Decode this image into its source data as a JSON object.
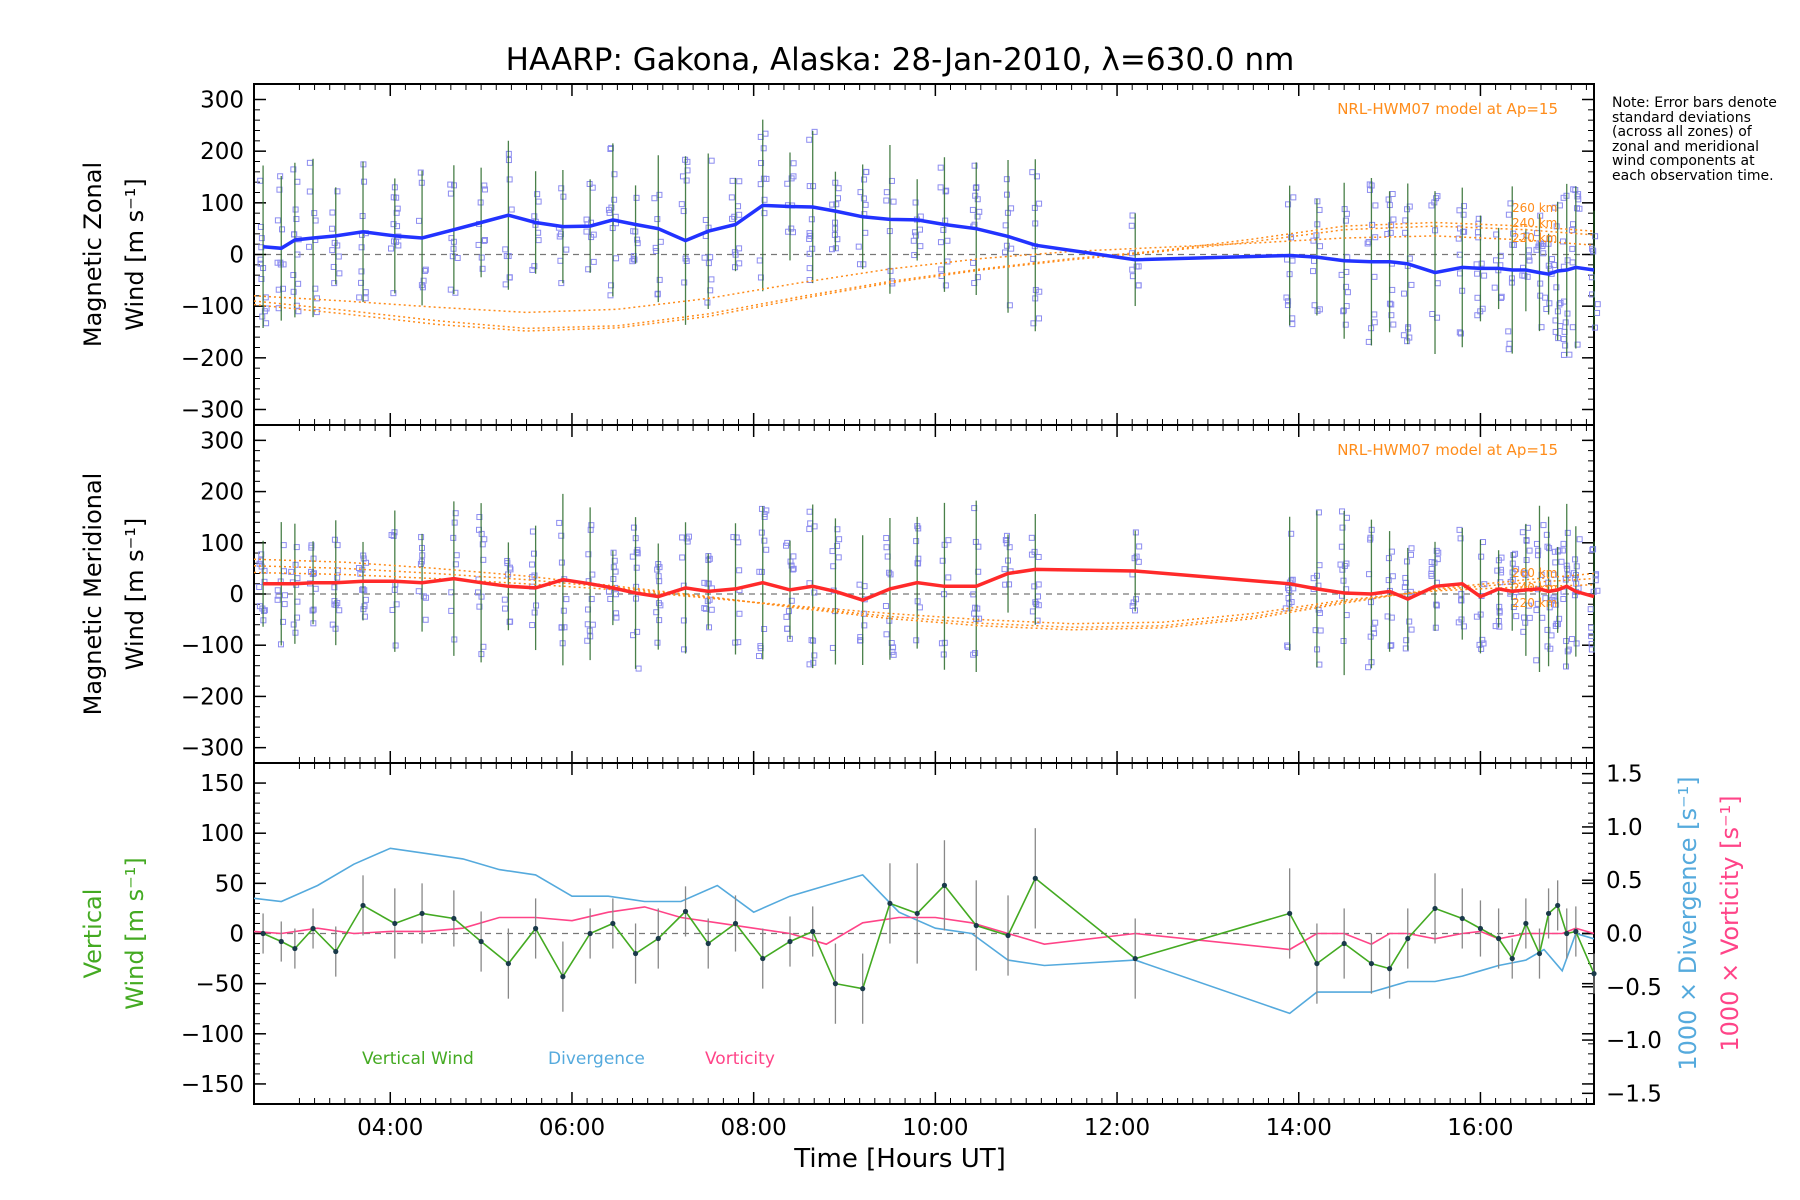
{
  "title": "HAARP: Gakona,  Alaska: 28-Jan-2010, λ=630.0 nm",
  "note": "Note: Error bars denote standard deviations (across all zones) of zonal and meridional wind components at each observation time.",
  "xlabel": "Time [Hours UT]",
  "x_tick_labels": [
    "04:00",
    "06:00",
    "08:00",
    "10:00",
    "12:00",
    "14:00",
    "16:00"
  ],
  "colors": {
    "zonal": "#2233ff",
    "meridional": "#ff2a2a",
    "model": "#ff8c1a",
    "scatter": "#8c8cf0",
    "vertical": "#44aa22",
    "divergence": "#55aadd",
    "vorticity": "#ff4488",
    "errorbar": "#888888"
  },
  "chart_data": [
    {
      "type": "line",
      "panel": "zonal",
      "ylabel_line1": "Magnetic Zonal",
      "ylabel_line2": "Wind [m s⁻¹]",
      "ylim": [
        -330,
        330
      ],
      "y_ticks": [
        300,
        200,
        100,
        0,
        -100,
        -200,
        -300
      ],
      "xlim": [
        2.5,
        17.25
      ],
      "model_label": "NRL-HWM07 model at Ap=15",
      "model_altitude_labels": [
        "260 km",
        "240 km",
        "220 km"
      ],
      "x": [
        2.6,
        2.8,
        2.95,
        3.15,
        3.4,
        3.7,
        4.05,
        4.35,
        4.7,
        5.0,
        5.3,
        5.6,
        5.9,
        6.2,
        6.45,
        6.7,
        6.95,
        7.25,
        7.5,
        7.8,
        8.1,
        8.4,
        8.65,
        8.9,
        9.2,
        9.5,
        9.8,
        10.1,
        10.45,
        10.8,
        11.1,
        12.2,
        13.9,
        14.2,
        14.5,
        14.8,
        15.0,
        15.2,
        15.5,
        15.8,
        16.0,
        16.2,
        16.35,
        16.5,
        16.65,
        16.75,
        16.85,
        16.95,
        17.05,
        17.25
      ],
      "series": [
        {
          "values": [
            15,
            12,
            28,
            32,
            36,
            44,
            36,
            32,
            48,
            62,
            76,
            62,
            54,
            55,
            67,
            58,
            50,
            27,
            45,
            58,
            95,
            93,
            92,
            84,
            73,
            68,
            67,
            58,
            50,
            35,
            18,
            -10,
            -2,
            -5,
            -12,
            -14,
            -14,
            -18,
            -35,
            -25,
            -27,
            -27,
            -30,
            -30,
            -35,
            -38,
            -32,
            -30,
            -25,
            -30
          ]
        }
      ],
      "model_curves": [
        {
          "altitude": "260 km",
          "x": [
            2.5,
            3.5,
            4.5,
            5.5,
            6.5,
            7.5,
            8.5,
            9.5,
            10.5,
            11.5,
            12.5,
            13.5,
            14.5,
            15.5,
            16.5,
            17.25
          ],
          "values": [
            -90,
            -108,
            -128,
            -143,
            -138,
            -115,
            -82,
            -52,
            -28,
            -8,
            8,
            30,
            55,
            62,
            55,
            45
          ]
        },
        {
          "altitude": "240 km",
          "x": [
            2.5,
            3.5,
            4.5,
            5.5,
            6.5,
            7.5,
            8.5,
            9.5,
            10.5,
            11.5,
            12.5,
            13.5,
            14.5,
            15.5,
            16.5,
            17.25
          ],
          "values": [
            -97,
            -115,
            -135,
            -148,
            -142,
            -120,
            -86,
            -55,
            -30,
            -10,
            6,
            25,
            48,
            55,
            48,
            38
          ]
        },
        {
          "altitude": "220 km",
          "x": [
            2.5,
            3.5,
            4.5,
            5.5,
            6.5,
            7.5,
            8.5,
            9.5,
            10.5,
            11.5,
            12.5,
            13.5,
            14.5,
            15.5,
            16.5,
            17.25
          ],
          "values": [
            -80,
            -90,
            -102,
            -112,
            -106,
            -85,
            -55,
            -28,
            -8,
            6,
            14,
            22,
            32,
            36,
            28,
            18
          ]
        }
      ]
    },
    {
      "type": "line",
      "panel": "meridional",
      "ylabel_line1": "Magnetic Meridional",
      "ylabel_line2": "Wind [m s⁻¹]",
      "ylim": [
        -330,
        330
      ],
      "y_ticks": [
        300,
        200,
        100,
        0,
        -100,
        -200,
        -300
      ],
      "xlim": [
        2.5,
        17.25
      ],
      "model_label": "NRL-HWM07 model at Ap=15",
      "model_altitude_labels": [
        "260 km",
        "240 km",
        "220 km"
      ],
      "x": [
        2.6,
        2.8,
        2.95,
        3.15,
        3.4,
        3.7,
        4.05,
        4.35,
        4.7,
        5.0,
        5.3,
        5.6,
        5.9,
        6.2,
        6.45,
        6.7,
        6.95,
        7.25,
        7.5,
        7.8,
        8.1,
        8.4,
        8.65,
        8.9,
        9.2,
        9.5,
        9.8,
        10.1,
        10.45,
        10.8,
        11.1,
        12.2,
        13.9,
        14.2,
        14.5,
        14.8,
        15.0,
        15.2,
        15.5,
        15.8,
        16.0,
        16.2,
        16.35,
        16.5,
        16.65,
        16.75,
        16.85,
        16.95,
        17.05,
        17.25
      ],
      "series": [
        {
          "values": [
            20,
            20,
            20,
            22,
            22,
            25,
            25,
            22,
            30,
            22,
            15,
            12,
            28,
            20,
            12,
            2,
            -5,
            12,
            5,
            10,
            22,
            8,
            15,
            5,
            -12,
            10,
            22,
            15,
            15,
            40,
            48,
            45,
            20,
            10,
            2,
            0,
            5,
            -10,
            15,
            20,
            -5,
            10,
            5,
            8,
            10,
            5,
            8,
            15,
            5,
            -5
          ]
        }
      ],
      "model_curves": [
        {
          "altitude": "260 km",
          "x": [
            2.5,
            3.5,
            4.5,
            5.5,
            6.5,
            7.5,
            8.5,
            9.5,
            10.5,
            11.5,
            12.5,
            13.5,
            14.5,
            15.5,
            16.5,
            17.25
          ],
          "values": [
            68,
            62,
            50,
            35,
            15,
            -5,
            -28,
            -48,
            -62,
            -70,
            -66,
            -48,
            -18,
            10,
            28,
            40
          ]
        },
        {
          "altitude": "240 km",
          "x": [
            2.5,
            3.5,
            4.5,
            5.5,
            6.5,
            7.5,
            8.5,
            9.5,
            10.5,
            11.5,
            12.5,
            13.5,
            14.5,
            15.5,
            16.5,
            17.25
          ],
          "values": [
            55,
            50,
            40,
            28,
            12,
            -6,
            -26,
            -44,
            -57,
            -65,
            -62,
            -44,
            -15,
            8,
            22,
            30
          ]
        },
        {
          "altitude": "220 km",
          "x": [
            2.5,
            3.5,
            4.5,
            5.5,
            6.5,
            7.5,
            8.5,
            9.5,
            10.5,
            11.5,
            12.5,
            13.5,
            14.5,
            15.5,
            16.5,
            17.25
          ],
          "values": [
            42,
            38,
            30,
            20,
            8,
            -8,
            -24,
            -38,
            -50,
            -58,
            -55,
            -38,
            -12,
            6,
            14,
            18
          ]
        }
      ]
    },
    {
      "type": "line",
      "panel": "vertical",
      "ylabel_line1": "Vertical",
      "ylabel_line2": "Wind [m s⁻¹]",
      "ylim": [
        -170,
        170
      ],
      "y_ticks": [
        150,
        100,
        50,
        0,
        -50,
        -100,
        -150
      ],
      "right_axis": {
        "ylim": [
          -1.6,
          1.6
        ],
        "ticks": [
          "1.5",
          "1.0",
          "0.5",
          "0.0",
          "−0.5",
          "−1.0",
          "−1.5"
        ],
        "label_divergence": "1000 × Divergence [s⁻¹]",
        "label_vorticity": "1000 × Vorticity [s⁻¹]"
      },
      "legend": [
        "Vertical Wind",
        "Divergence",
        "Vorticity"
      ],
      "xlim": [
        2.5,
        17.25
      ],
      "series": [
        {
          "name": "Vertical Wind",
          "x": [
            2.6,
            2.8,
            2.95,
            3.15,
            3.4,
            3.7,
            4.05,
            4.35,
            4.7,
            5.0,
            5.3,
            5.6,
            5.9,
            6.2,
            6.45,
            6.7,
            6.95,
            7.25,
            7.5,
            7.8,
            8.1,
            8.4,
            8.65,
            8.9,
            9.2,
            9.5,
            9.8,
            10.1,
            10.45,
            10.8,
            11.1,
            12.2,
            13.9,
            14.2,
            14.5,
            14.8,
            15.0,
            15.2,
            15.5,
            15.8,
            16.0,
            16.2,
            16.35,
            16.5,
            16.65,
            16.75,
            16.85,
            16.95,
            17.05,
            17.25
          ],
          "values": [
            0,
            -8,
            -15,
            5,
            -18,
            28,
            10,
            20,
            15,
            -8,
            -30,
            5,
            -43,
            0,
            10,
            -20,
            -5,
            22,
            -10,
            10,
            -25,
            -8,
            2,
            -50,
            -55,
            30,
            20,
            48,
            8,
            -2,
            55,
            -25,
            20,
            -30,
            -10,
            -30,
            -35,
            -5,
            25,
            15,
            5,
            -5,
            -25,
            10,
            -20,
            20,
            28,
            0,
            2,
            -40
          ],
          "errors": [
            20,
            20,
            20,
            20,
            25,
            30,
            35,
            30,
            28,
            30,
            35,
            30,
            35,
            25,
            25,
            30,
            30,
            25,
            25,
            28,
            30,
            25,
            25,
            40,
            35,
            40,
            50,
            45,
            45,
            40,
            50,
            40,
            45,
            40,
            35,
            30,
            30,
            30,
            35,
            30,
            28,
            30,
            20,
            25,
            25,
            25,
            25,
            25,
            25,
            20
          ]
        },
        {
          "name": "Divergence",
          "x": [
            2.5,
            2.8,
            3.2,
            3.6,
            4.0,
            4.4,
            4.8,
            5.2,
            5.6,
            6.0,
            6.4,
            6.8,
            7.2,
            7.6,
            8.0,
            8.4,
            8.8,
            9.2,
            9.6,
            10.0,
            10.4,
            10.8,
            11.2,
            12.2,
            13.9,
            14.2,
            14.5,
            14.8,
            15.0,
            15.2,
            15.5,
            15.8,
            16.0,
            16.2,
            16.5,
            16.7,
            16.9,
            17.05,
            17.25
          ],
          "values": [
            0.33,
            0.3,
            0.45,
            0.65,
            0.8,
            0.75,
            0.7,
            0.6,
            0.55,
            0.35,
            0.35,
            0.3,
            0.3,
            0.45,
            0.2,
            0.35,
            0.45,
            0.55,
            0.2,
            0.05,
            0.0,
            -0.25,
            -0.3,
            -0.25,
            -0.75,
            -0.55,
            -0.55,
            -0.55,
            -0.5,
            -0.45,
            -0.45,
            -0.4,
            -0.35,
            -0.3,
            -0.25,
            -0.15,
            -0.35,
            0.0,
            -0.05
          ]
        },
        {
          "name": "Vorticity",
          "x": [
            2.5,
            2.8,
            3.2,
            3.6,
            4.0,
            4.4,
            4.8,
            5.2,
            5.6,
            6.0,
            6.4,
            6.8,
            7.2,
            7.6,
            8.0,
            8.4,
            8.8,
            9.2,
            9.6,
            10.0,
            10.4,
            10.8,
            11.2,
            12.2,
            13.9,
            14.2,
            14.5,
            14.8,
            15.0,
            15.2,
            15.5,
            15.8,
            16.0,
            16.2,
            16.5,
            16.7,
            16.9,
            17.05,
            17.25
          ],
          "values": [
            0.02,
            0.0,
            0.05,
            0.0,
            0.02,
            0.02,
            0.05,
            0.15,
            0.15,
            0.12,
            0.2,
            0.25,
            0.15,
            0.1,
            0.05,
            0.0,
            -0.1,
            0.1,
            0.15,
            0.15,
            0.1,
            0.0,
            -0.1,
            0.0,
            -0.15,
            0.0,
            0.0,
            -0.1,
            0.0,
            0.0,
            -0.05,
            0.0,
            0.02,
            -0.05,
            0.0,
            0.0,
            0.0,
            0.05,
            0.0
          ]
        }
      ]
    }
  ]
}
